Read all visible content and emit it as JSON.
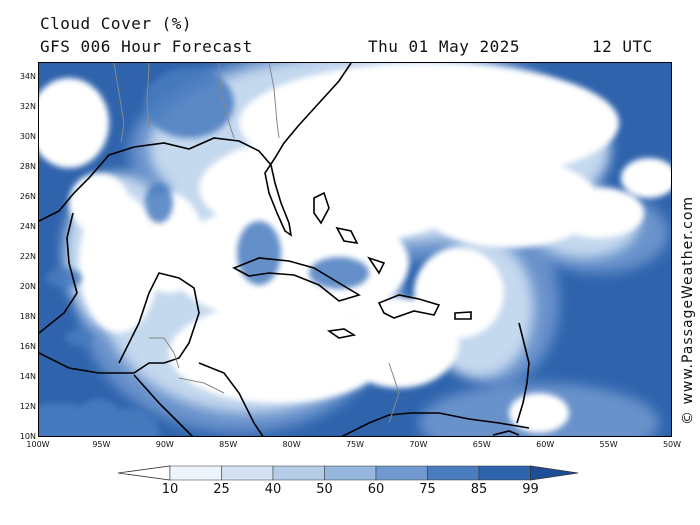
{
  "title": {
    "line1": "Cloud Cover (%)",
    "line2": "GFS 006 Hour Forecast",
    "date": "Thu 01 May 2025",
    "time": "12 UTC"
  },
  "credit": "© www.PassageWeather.com",
  "axes": {
    "lat_labels": [
      "34N",
      "32N",
      "30N",
      "28N",
      "26N",
      "24N",
      "22N",
      "20N",
      "18N",
      "16N",
      "14N",
      "12N",
      "10N"
    ],
    "lon_labels": [
      "100W",
      "95W",
      "90W",
      "85W",
      "80W",
      "75W",
      "70W",
      "65W",
      "60W",
      "55W",
      "50W"
    ],
    "lat_range": [
      10,
      35
    ],
    "lon_range": [
      -100,
      -50
    ]
  },
  "legend": {
    "labels": [
      "10",
      "25",
      "40",
      "50",
      "60",
      "75",
      "85",
      "99"
    ],
    "colors": [
      "#ffffff",
      "#eef4fb",
      "#d3e1f2",
      "#b6cde8",
      "#96b7dd",
      "#7299cf",
      "#4a7cbf",
      "#2f64ad",
      "#1d4f98"
    ]
  },
  "map": {
    "ocean_color": "#2f64ad",
    "cloud_color": "#ffffff",
    "coast_color": "#000000",
    "border_color": "#888888"
  }
}
